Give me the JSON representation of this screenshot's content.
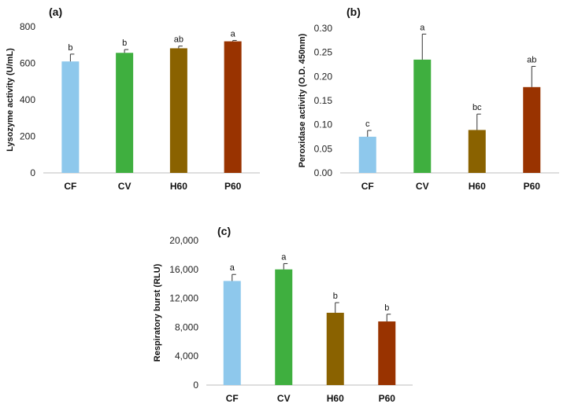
{
  "chart_data": [
    {
      "type": "bar",
      "panel_label": "(a)",
      "title": "",
      "xlabel": "",
      "ylabel": "Lysozyme activity (U/mL)",
      "categories": [
        "CF",
        "CV",
        "H60",
        "P60"
      ],
      "values": [
        610,
        657,
        682,
        720
      ],
      "errors": [
        40,
        18,
        12,
        5
      ],
      "significance": [
        "b",
        "b",
        "ab",
        "a"
      ],
      "colors": [
        "#8ec8ec",
        "#3faf3f",
        "#8a6200",
        "#993300"
      ],
      "ylim": [
        0,
        800
      ],
      "yticks": [
        "0",
        "200",
        "400",
        "600",
        "800"
      ],
      "grid": false
    },
    {
      "type": "bar",
      "panel_label": "(b)",
      "title": "",
      "xlabel": "",
      "ylabel": "Peroxidase activity (O.D. 450nm)",
      "categories": [
        "CF",
        "CV",
        "H60",
        "P60"
      ],
      "values": [
        0.075,
        0.235,
        0.089,
        0.178
      ],
      "errors": [
        0.013,
        0.053,
        0.033,
        0.043
      ],
      "significance": [
        "c",
        "a",
        "bc",
        "ab"
      ],
      "colors": [
        "#8ec8ec",
        "#3faf3f",
        "#8a6200",
        "#993300"
      ],
      "ylim": [
        0,
        0.3
      ],
      "yticks": [
        "0.00",
        "0.05",
        "0.10",
        "0.15",
        "0.20",
        "0.25",
        "0.30"
      ],
      "grid": false
    },
    {
      "type": "bar",
      "panel_label": "(c)",
      "title": "",
      "xlabel": "",
      "ylabel": "Respiratory burst (RLU)",
      "categories": [
        "CF",
        "CV",
        "H60",
        "P60"
      ],
      "values": [
        14400,
        16000,
        10000,
        8800
      ],
      "errors": [
        900,
        800,
        1400,
        1000
      ],
      "significance": [
        "a",
        "a",
        "b",
        "b"
      ],
      "colors": [
        "#8ec8ec",
        "#3faf3f",
        "#8a6200",
        "#993300"
      ],
      "ylim": [
        0,
        20000
      ],
      "yticks": [
        "0",
        "4,000",
        "8,000",
        "12,000",
        "16,000",
        "20,000"
      ],
      "grid": false
    }
  ]
}
